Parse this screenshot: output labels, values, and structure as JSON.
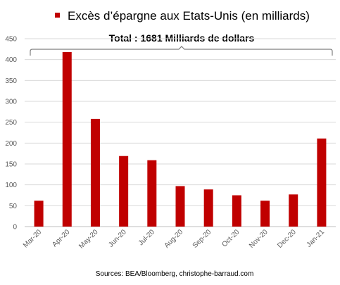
{
  "chart_data": {
    "type": "bar",
    "legend": {
      "label": "Excès d’épargne aux Etats-Unis (en milliards)",
      "position": "top-right"
    },
    "annotation": "Total : 1681 Milliards de dollars",
    "categories": [
      "Mar-20",
      "Apr-20",
      "May-20",
      "Jun-20",
      "Jul-20",
      "Aug-20",
      "Sep-20",
      "Oct-20",
      "Nov-20",
      "Dec-20",
      "Jan-21"
    ],
    "values": [
      62,
      418,
      258,
      169,
      159,
      97,
      89,
      75,
      62,
      77,
      211
    ],
    "ylim": [
      0,
      450
    ],
    "yticks": [
      0,
      50,
      100,
      150,
      200,
      250,
      300,
      350,
      400,
      450
    ],
    "grid": true,
    "bar_color": "#C00000",
    "source": "Sources: BEA/Bloomberg, christophe-barraud.com"
  }
}
